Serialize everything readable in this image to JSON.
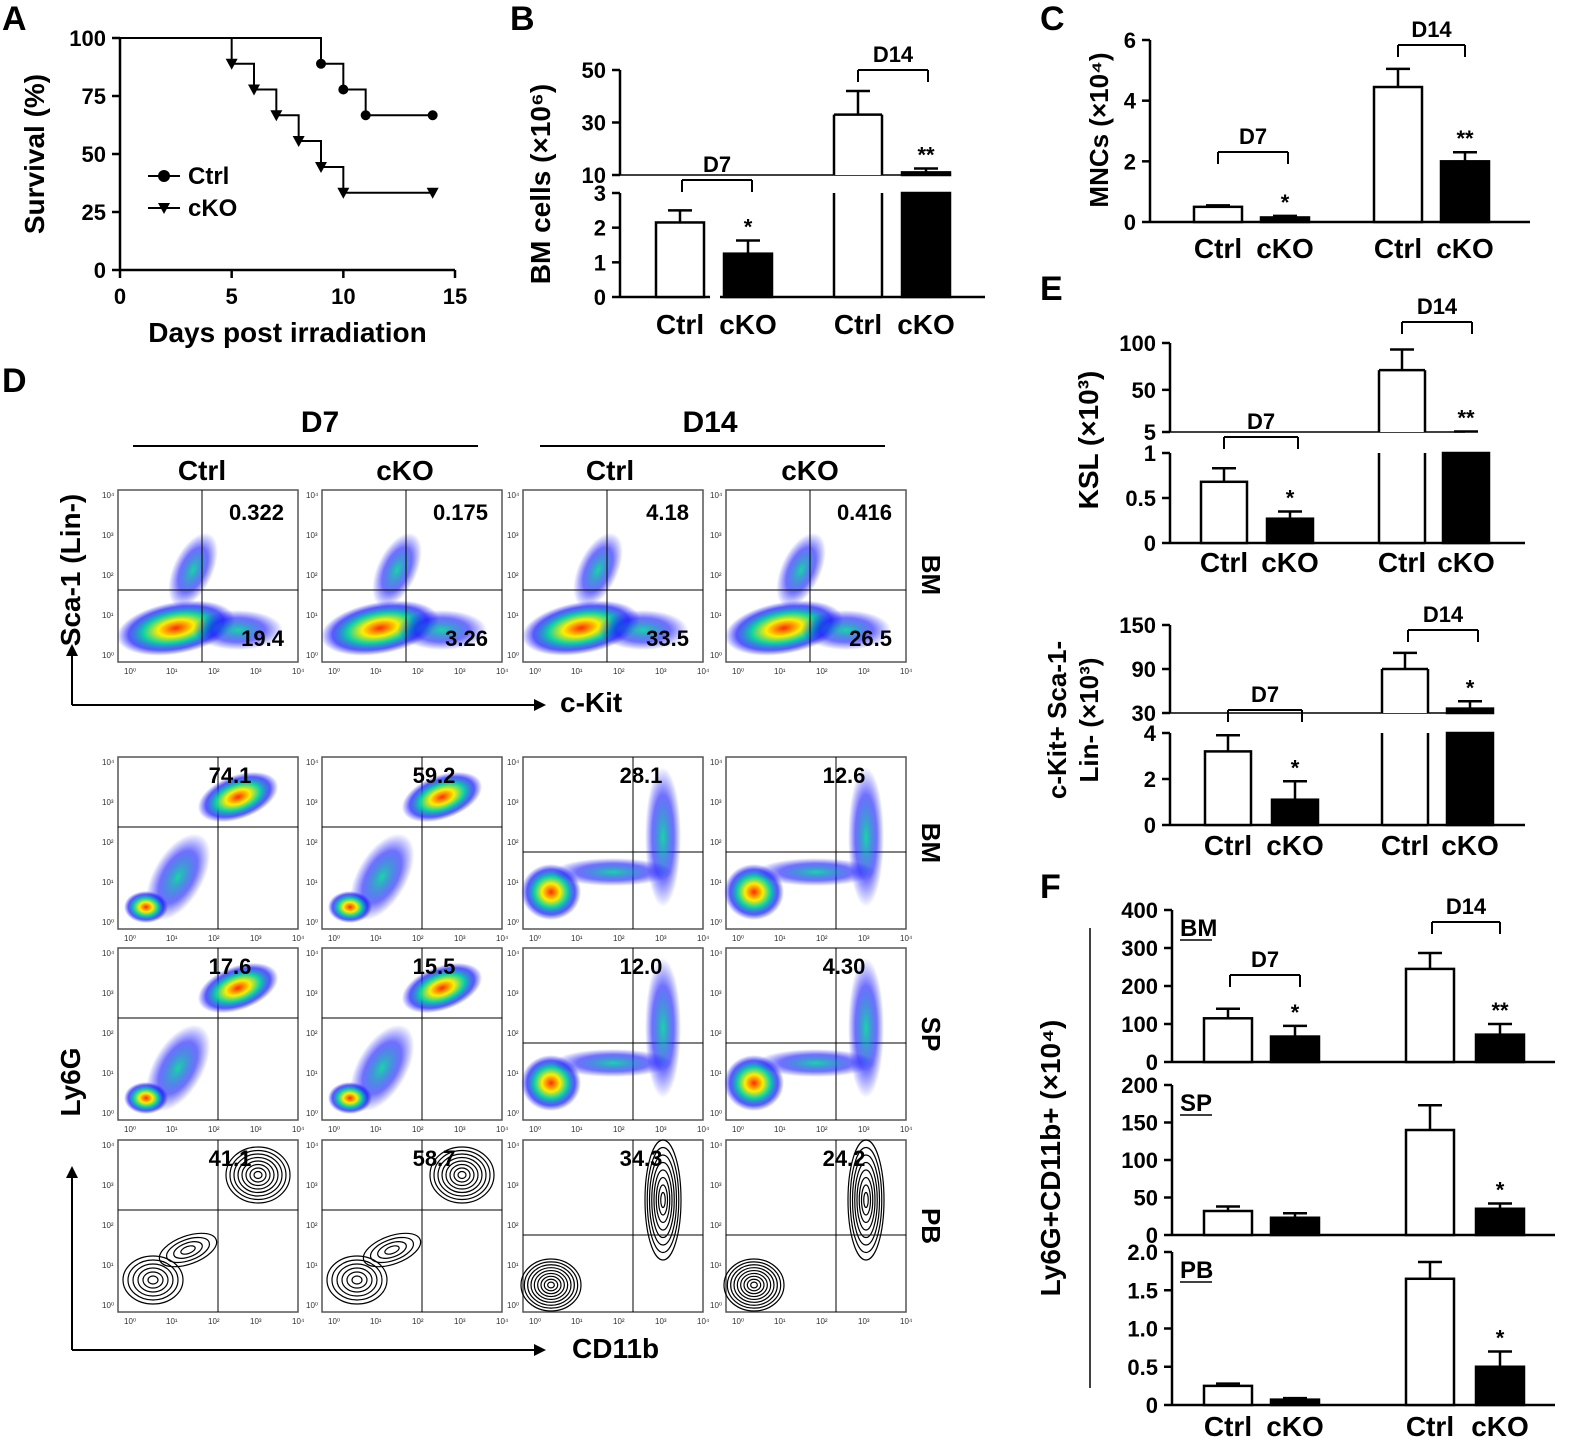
{
  "panels": {
    "A": "A",
    "B": "B",
    "C": "C",
    "D": "D",
    "E": "E",
    "F": "F"
  },
  "chart_data": [
    {
      "id": "A",
      "type": "line",
      "xlabel": "Days post irradiation",
      "ylabel": "Survival (%)",
      "xticks": [
        "0",
        "5",
        "10",
        "15"
      ],
      "yticks": [
        "0",
        "25",
        "50",
        "75",
        "100"
      ],
      "xlim": [
        0,
        15
      ],
      "ylim": [
        0,
        100
      ],
      "series": [
        {
          "name": "Ctrl",
          "marker": "circle",
          "steps": [
            [
              0,
              100
            ],
            [
              9,
              88.9
            ],
            [
              10,
              77.8
            ],
            [
              11,
              66.7
            ],
            [
              14,
              66.7
            ]
          ]
        },
        {
          "name": "cKO",
          "marker": "triangle",
          "steps": [
            [
              0,
              100
            ],
            [
              5,
              88.9
            ],
            [
              6,
              77.8
            ],
            [
              7,
              66.7
            ],
            [
              8,
              55.6
            ],
            [
              9,
              44.4
            ],
            [
              10,
              33.3
            ],
            [
              14,
              33.3
            ]
          ]
        }
      ]
    },
    {
      "id": "B",
      "type": "bar",
      "ylabel": "BM cells (×10⁶)",
      "categories": [
        "Ctrl",
        "cKO",
        "Ctrl",
        "cKO"
      ],
      "groups": [
        "D7",
        "D14"
      ],
      "values": [
        2.15,
        1.25,
        33,
        11
      ],
      "errors": [
        0.35,
        0.38,
        9,
        1.5
      ],
      "significance": [
        "",
        "*",
        "",
        "**"
      ],
      "lower_axis": {
        "range": [
          0,
          3
        ],
        "ticks": [
          "0",
          "1",
          "2",
          "3"
        ]
      },
      "upper_axis": {
        "range": [
          10,
          50
        ],
        "ticks": [
          "10",
          "30",
          "50"
        ]
      }
    },
    {
      "id": "C",
      "type": "bar",
      "ylabel": "MNCs (×10⁴)",
      "categories": [
        "Ctrl",
        "cKO",
        "Ctrl",
        "cKO"
      ],
      "groups": [
        "D7",
        "D14"
      ],
      "values": [
        0.5,
        0.15,
        4.45,
        2.0
      ],
      "errors": [
        0.05,
        0.05,
        0.6,
        0.3
      ],
      "significance": [
        "",
        "*",
        "",
        "**"
      ],
      "ylim": [
        0,
        6
      ],
      "yticks": [
        "0",
        "2",
        "4",
        "6"
      ]
    },
    {
      "id": "E1",
      "type": "bar",
      "ylabel": "KSL (×10³)",
      "categories": [
        "Ctrl",
        "cKO",
        "Ctrl",
        "cKO"
      ],
      "groups": [
        "D7",
        "D14"
      ],
      "values": [
        0.68,
        0.27,
        71,
        5
      ],
      "errors": [
        0.15,
        0.08,
        22,
        0.5
      ],
      "significance": [
        "",
        "*",
        "",
        "**"
      ],
      "lower_axis": {
        "range": [
          0,
          1
        ],
        "ticks": [
          "0",
          "0.5",
          "1"
        ]
      },
      "upper_axis": {
        "range": [
          5,
          100
        ],
        "ticks": [
          "5",
          "50",
          "100"
        ]
      }
    },
    {
      "id": "E2",
      "type": "bar",
      "ylabel": "c-Kit+ Sca-1- Lin- (×10³)",
      "categories": [
        "Ctrl",
        "cKO",
        "Ctrl",
        "cKO"
      ],
      "groups": [
        "D7",
        "D14"
      ],
      "values": [
        3.2,
        1.1,
        90,
        36
      ],
      "errors": [
        0.7,
        0.8,
        22,
        10
      ],
      "significance": [
        "",
        "*",
        "",
        "*"
      ],
      "lower_axis": {
        "range": [
          0,
          4
        ],
        "ticks": [
          "0",
          "2",
          "4"
        ]
      },
      "upper_axis": {
        "range": [
          30,
          150
        ],
        "ticks": [
          "30",
          "90",
          "150"
        ]
      }
    },
    {
      "id": "F",
      "type": "bar",
      "ylabel": "Ly6G+CD11b+ (×10⁴)",
      "categories": [
        "Ctrl",
        "cKO",
        "Ctrl",
        "cKO"
      ],
      "groups": [
        "D7",
        "D14"
      ],
      "subplots": [
        {
          "name": "BM",
          "values": [
            115,
            67,
            245,
            72
          ],
          "errors": [
            25,
            28,
            42,
            28
          ],
          "significance": [
            "",
            "*",
            "",
            "**"
          ],
          "ylim": [
            0,
            400
          ],
          "yticks": [
            "0",
            "100",
            "200",
            "300",
            "400"
          ],
          "brackets": true
        },
        {
          "name": "SP",
          "values": [
            32,
            23,
            140,
            35
          ],
          "errors": [
            6,
            6,
            33,
            7
          ],
          "significance": [
            "",
            "",
            "",
            "*"
          ],
          "ylim": [
            0,
            200
          ],
          "yticks": [
            "0",
            "50",
            "100",
            "150",
            "200"
          ]
        },
        {
          "name": "PB",
          "values": [
            0.25,
            0.07,
            1.65,
            0.5
          ],
          "errors": [
            0.03,
            0.02,
            0.22,
            0.2
          ],
          "significance": [
            "",
            "",
            "",
            "*"
          ],
          "ylim": [
            0,
            2
          ],
          "yticks": [
            "0",
            "0.5",
            "1.0",
            "1.5",
            "2.0"
          ]
        }
      ]
    },
    {
      "id": "D",
      "type": "table",
      "header_groups": [
        "D7",
        "D14"
      ],
      "columns": [
        "Ctrl",
        "cKO",
        "Ctrl",
        "cKO"
      ],
      "top_row": {
        "tissue": "BM",
        "ylabel": "Sca-1 (Lin-)",
        "xlabel": "c-Kit",
        "upper": [
          "0.322",
          "0.175",
          "4.18",
          "0.416"
        ],
        "lower": [
          "19.4",
          "3.26",
          "33.5",
          "26.5"
        ]
      },
      "rows": [
        {
          "tissue": "BM",
          "values": [
            "74.1",
            "59.2",
            "28.1",
            "12.6"
          ]
        },
        {
          "tissue": "SP",
          "values": [
            "17.6",
            "15.5",
            "12.0",
            "4.30"
          ]
        },
        {
          "tissue": "PB",
          "values": [
            "41.1",
            "58.7",
            "34.3",
            "24.2"
          ]
        }
      ],
      "ylabel": "Ly6G",
      "xlabel": "CD11b",
      "axis_ticks": [
        "10⁰",
        "10¹",
        "10²",
        "10³",
        "10⁴"
      ]
    }
  ],
  "colors": {
    "ink": "#000000",
    "open": "#ffffff",
    "filled": "#000000",
    "flow_cold": "#1010ff",
    "flow_mid": "#00d0a0",
    "flow_hot": "#ff2a00"
  }
}
